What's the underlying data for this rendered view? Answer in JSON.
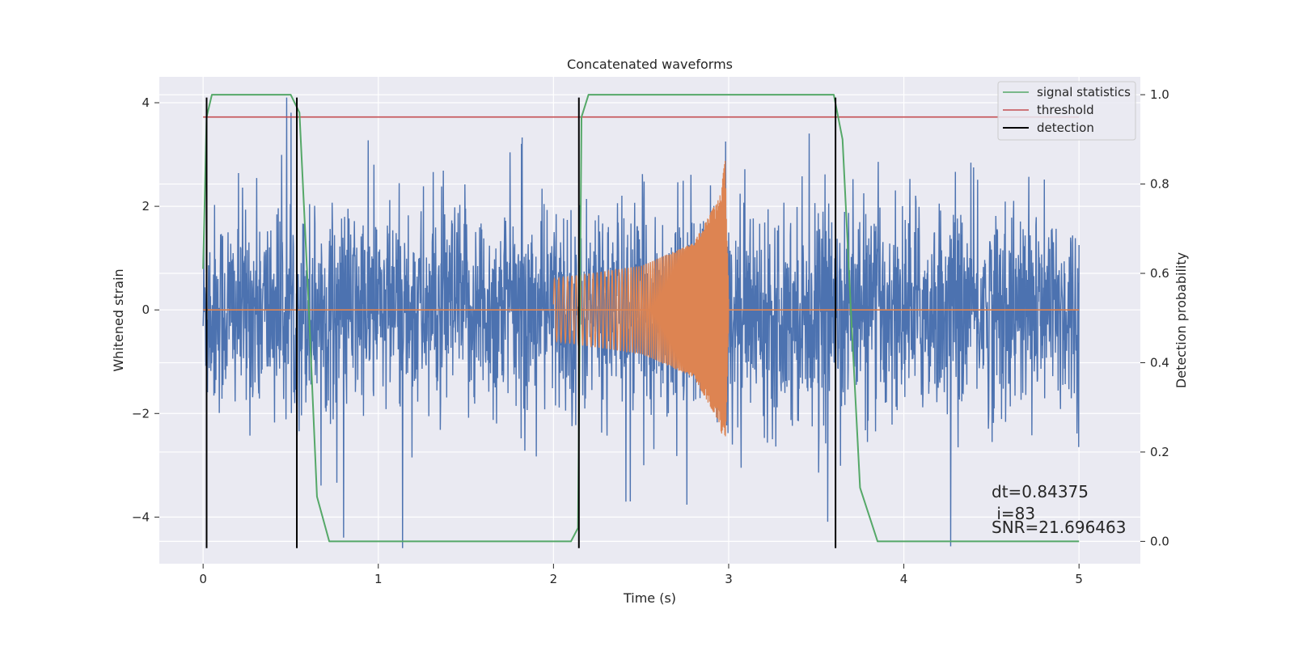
{
  "chart_data": {
    "type": "line",
    "title": "Concatenated waveforms",
    "xlabel": "Time (s)",
    "ylabel": "Whitened strain",
    "y2label": "Detection probability",
    "xlim": [
      -0.25,
      5.35
    ],
    "ylim": [
      -4.9,
      4.5
    ],
    "y2lim": [
      -0.05,
      1.04
    ],
    "xticks": [
      0,
      1,
      2,
      3,
      4,
      5
    ],
    "yticks": [
      -4,
      -2,
      0,
      2,
      4
    ],
    "y2ticks": [
      0.0,
      0.2,
      0.4,
      0.6,
      0.8,
      1.0
    ],
    "grid": true,
    "legend_position": "top-right",
    "legend": [
      "signal statistics",
      "threshold",
      "detection"
    ],
    "colors": {
      "noise": "#4c72b0",
      "template": "#dd8452",
      "signal_statistics": "#55a868",
      "threshold": "#c44e52",
      "detection": "#000000",
      "plot_bg": "#eaeaf2",
      "grid": "#ffffff"
    },
    "series": [
      {
        "name": "",
        "axis": "left",
        "description_values": {
          "x_range": [
            0,
            5
          ],
          "typical_amplitude": 1.0,
          "max": 4.1,
          "min": -4.6
        }
      },
      {
        "name": "",
        "axis": "left",
        "x_range": [
          2.0,
          3.0
        ],
        "envelope": [
          [
            2.0,
            0.6
          ],
          [
            2.5,
            0.85
          ],
          [
            2.8,
            1.3
          ],
          [
            2.95,
            2.2
          ],
          [
            2.98,
            2.9
          ],
          [
            3.0,
            0.3
          ]
        ]
      },
      {
        "name": "signal statistics",
        "axis": "right",
        "points": [
          [
            0.0,
            0.61
          ],
          [
            0.02,
            0.95
          ],
          [
            0.05,
            1.0
          ],
          [
            0.5,
            1.0
          ],
          [
            0.55,
            0.96
          ],
          [
            0.6,
            0.55
          ],
          [
            0.65,
            0.1
          ],
          [
            0.72,
            0.0
          ],
          [
            2.1,
            0.0
          ],
          [
            2.14,
            0.03
          ],
          [
            2.16,
            0.95
          ],
          [
            2.2,
            1.0
          ],
          [
            3.6,
            1.0
          ],
          [
            3.65,
            0.9
          ],
          [
            3.7,
            0.5
          ],
          [
            3.75,
            0.12
          ],
          [
            3.85,
            0.0
          ],
          [
            5.0,
            0.0
          ]
        ]
      },
      {
        "name": "threshold",
        "axis": "right",
        "value": 0.95,
        "x_range": [
          0,
          5
        ]
      },
      {
        "name": "detection",
        "axis": "left",
        "x": [
          0.02,
          0.535,
          2.145,
          3.61
        ]
      }
    ],
    "annotations": {
      "dt": "dt=0.84375",
      "i": " i=83",
      "snr": "SNR=21.696463"
    }
  }
}
